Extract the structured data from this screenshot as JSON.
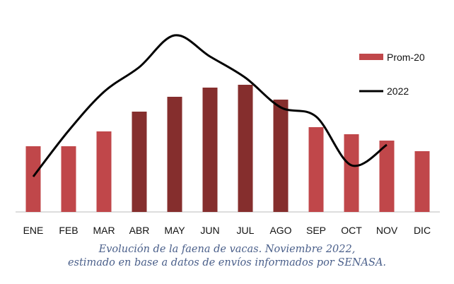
{
  "chart_data": {
    "type": "bar",
    "categories": [
      "ENE",
      "FEB",
      "MAR",
      "ABR",
      "MAY",
      "JUN",
      "JUL",
      "AGO",
      "SEP",
      "OCT",
      "NOV",
      "DIC"
    ],
    "series": [
      {
        "name": "Prom-20",
        "type": "bar",
        "values": [
          93,
          93,
          114,
          142,
          163,
          176,
          180,
          159,
          120,
          110,
          101,
          86
        ]
      },
      {
        "name": "2022",
        "type": "line",
        "values": [
          50,
          115,
          170,
          205,
          250,
          220,
          190,
          148,
          135,
          66,
          95,
          null
        ]
      }
    ],
    "highlight_categories": [
      "ABR",
      "MAY",
      "JUN",
      "JUL",
      "AGO"
    ],
    "ylim": [
      0,
      250
    ],
    "grid": false,
    "legend": "top-right",
    "colors": {
      "bar": "#c0474a",
      "bar_highlight": "#852e2d",
      "line": "#000000"
    },
    "caption": [
      "Evolución de la faena de vacas. Noviembre 2022,",
      "estimado en base a datos de envíos informados por SENASA."
    ]
  }
}
